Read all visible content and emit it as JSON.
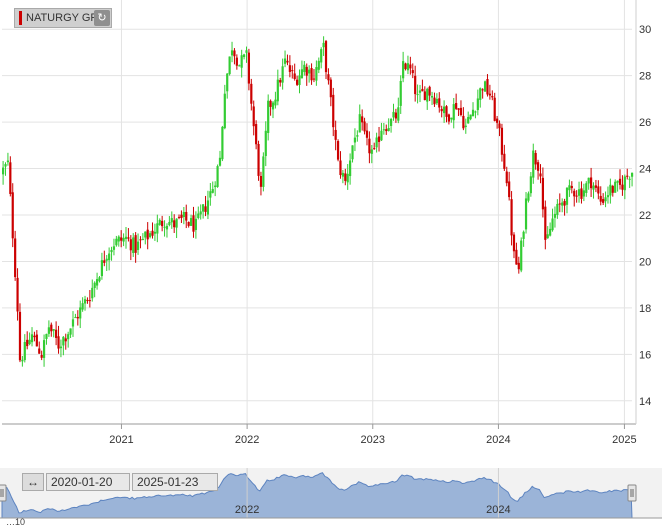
{
  "legend": {
    "label": "NATURGY GR",
    "color": "#cc0000",
    "refresh_icon": "refresh-icon"
  },
  "range_selector": {
    "from": "2020-01-20",
    "to": "2025-01-23",
    "toggle_icon": "double-arrow-icon"
  },
  "bottom_text": "…10",
  "colors": {
    "up": "#33cc33",
    "down": "#cc0000",
    "navigator_fill": "#9bb4d8",
    "navigator_line": "#5d84c0"
  },
  "chart_data": {
    "type": "candlestick",
    "title": "",
    "xlabel": "",
    "ylabel": "",
    "x_range": [
      "2020-01-20",
      "2025-01-23"
    ],
    "ylim": [
      13,
      31
    ],
    "y_ticks": [
      14,
      16,
      18,
      20,
      22,
      24,
      26,
      28,
      30
    ],
    "y_axis_side": "right",
    "x_ticks": [
      {
        "label": "2021",
        "date": "2021-01-01"
      },
      {
        "label": "2022",
        "date": "2022-01-01"
      },
      {
        "label": "2023",
        "date": "2023-01-01"
      },
      {
        "label": "2024",
        "date": "2024-01-01"
      },
      {
        "label": "2025",
        "date": "2025-01-01"
      }
    ],
    "grid": true,
    "legend_position": "top-left",
    "navigator": {
      "x_ticks": [
        {
          "label": "2022",
          "date": "2022-01-01"
        },
        {
          "label": "2024",
          "date": "2024-01-01"
        }
      ]
    },
    "price_path": [
      [
        "2020-01-20",
        23.8
      ],
      [
        "2020-02-10",
        24.2
      ],
      [
        "2020-02-24",
        21.2
      ],
      [
        "2020-03-09",
        18.0
      ],
      [
        "2020-03-16",
        15.8
      ],
      [
        "2020-03-30",
        16.2
      ],
      [
        "2020-04-20",
        16.8
      ],
      [
        "2020-05-18",
        16.0
      ],
      [
        "2020-06-08",
        17.2
      ],
      [
        "2020-07-06",
        16.4
      ],
      [
        "2020-08-03",
        17.0
      ],
      [
        "2020-09-07",
        17.9
      ],
      [
        "2020-10-05",
        18.6
      ],
      [
        "2020-11-02",
        19.6
      ],
      [
        "2020-11-23",
        20.4
      ],
      [
        "2020-12-14",
        20.8
      ],
      [
        "2021-01-18",
        21.0
      ],
      [
        "2021-02-15",
        20.6
      ],
      [
        "2021-03-15",
        21.0
      ],
      [
        "2021-04-12",
        21.4
      ],
      [
        "2021-05-10",
        21.8
      ],
      [
        "2021-06-07",
        21.6
      ],
      [
        "2021-07-05",
        21.8
      ],
      [
        "2021-08-09",
        21.5
      ],
      [
        "2021-09-06",
        22.4
      ],
      [
        "2021-09-27",
        23.2
      ],
      [
        "2021-10-18",
        24.4
      ],
      [
        "2021-11-01",
        27.5
      ],
      [
        "2021-11-22",
        29.3
      ],
      [
        "2021-12-13",
        28.5
      ],
      [
        "2022-01-03",
        28.8
      ],
      [
        "2022-01-24",
        25.8
      ],
      [
        "2022-02-14",
        23.0
      ],
      [
        "2022-03-07",
        26.6
      ],
      [
        "2022-03-28",
        27.2
      ],
      [
        "2022-04-25",
        28.6
      ],
      [
        "2022-05-23",
        27.8
      ],
      [
        "2022-06-20",
        28.4
      ],
      [
        "2022-07-18",
        28.0
      ],
      [
        "2022-08-15",
        29.2
      ],
      [
        "2022-09-05",
        26.8
      ],
      [
        "2022-09-26",
        24.2
      ],
      [
        "2022-10-17",
        23.4
      ],
      [
        "2022-11-07",
        25.0
      ],
      [
        "2022-11-28",
        26.0
      ],
      [
        "2022-12-19",
        25.0
      ],
      [
        "2023-01-09",
        24.6
      ],
      [
        "2023-01-30",
        25.8
      ],
      [
        "2023-02-27",
        26.0
      ],
      [
        "2023-03-20",
        26.4
      ],
      [
        "2023-04-03",
        28.6
      ],
      [
        "2023-04-24",
        28.2
      ],
      [
        "2023-05-15",
        27.0
      ],
      [
        "2023-06-12",
        27.4
      ],
      [
        "2023-07-10",
        27.0
      ],
      [
        "2023-08-07",
        26.2
      ],
      [
        "2023-09-04",
        26.8
      ],
      [
        "2023-10-02",
        25.8
      ],
      [
        "2023-10-30",
        26.8
      ],
      [
        "2023-11-20",
        27.6
      ],
      [
        "2023-12-11",
        27.2
      ],
      [
        "2024-01-08",
        25.4
      ],
      [
        "2024-01-29",
        23.6
      ],
      [
        "2024-02-19",
        20.2
      ],
      [
        "2024-03-04",
        19.6
      ],
      [
        "2024-03-25",
        22.6
      ],
      [
        "2024-04-15",
        24.6
      ],
      [
        "2024-05-06",
        24.0
      ],
      [
        "2024-05-20",
        20.6
      ],
      [
        "2024-06-10",
        21.8
      ],
      [
        "2024-07-08",
        22.6
      ],
      [
        "2024-08-05",
        23.1
      ],
      [
        "2024-09-02",
        23.0
      ],
      [
        "2024-09-30",
        23.5
      ],
      [
        "2024-10-28",
        22.6
      ],
      [
        "2024-11-25",
        23.1
      ],
      [
        "2024-12-23",
        23.2
      ],
      [
        "2025-01-23",
        23.9
      ]
    ]
  }
}
